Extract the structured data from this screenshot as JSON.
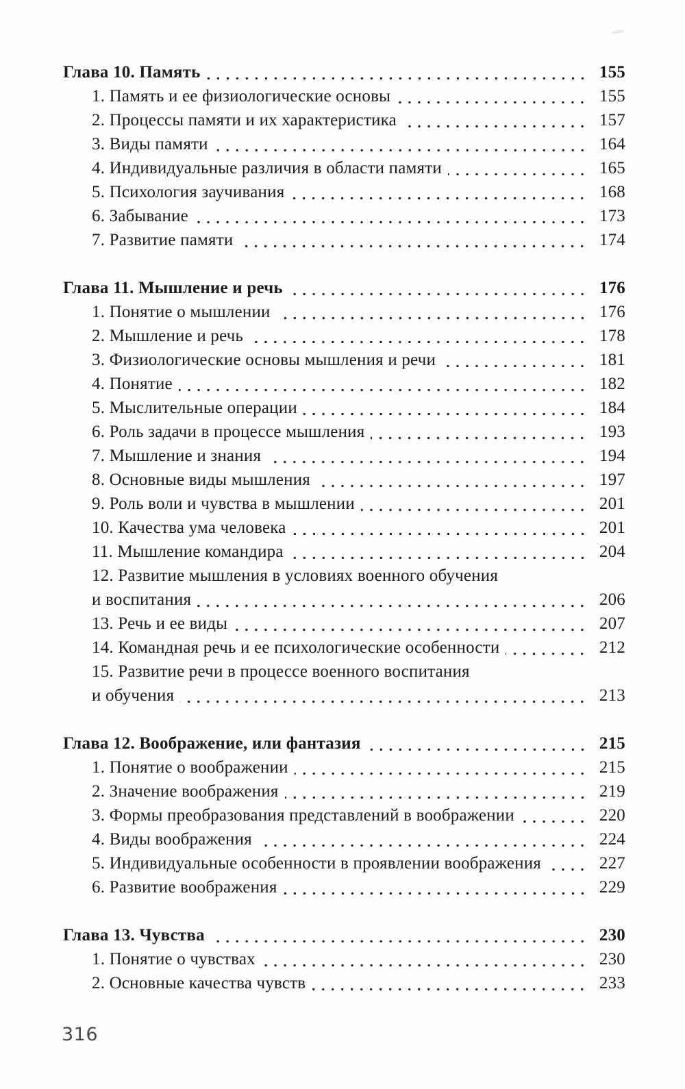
{
  "colors": {
    "ink": "#1d1c1a",
    "paper": "#fdfdfb",
    "folio": "#4a4a4a"
  },
  "footer": {
    "page_number": "316"
  },
  "toc": {
    "chapters": [
      {
        "title": "Глава 10. Память",
        "page": "155",
        "items": [
          {
            "text": "1. Память и ее физиологические основы",
            "page": "155"
          },
          {
            "text": "2. Процессы памяти и их характеристика",
            "page": "157"
          },
          {
            "text": "3. Виды памяти",
            "page": "164"
          },
          {
            "text": "4. Индивидуальные различия в области памяти",
            "page": "165"
          },
          {
            "text": "5. Психология заучивания",
            "page": "168"
          },
          {
            "text": "6. Забывание",
            "page": "173"
          },
          {
            "text": "7. Развитие памяти",
            "page": "174"
          }
        ]
      },
      {
        "title": "Глава 11. Мышление и речь",
        "page": "176",
        "items": [
          {
            "text": "1. Понятие о мышлении",
            "page": "176"
          },
          {
            "text": "2. Мышление и речь",
            "page": "178"
          },
          {
            "text": "3. Физиологические основы мышления и речи",
            "page": "181"
          },
          {
            "text": "4. Понятие",
            "page": "182"
          },
          {
            "text": "5. Мыслительные операции",
            "page": "184"
          },
          {
            "text": "6. Роль задачи в процессе мышления",
            "page": "193"
          },
          {
            "text": "7. Мышление и знания",
            "page": "194"
          },
          {
            "text": "8. Основные виды мышления",
            "page": "197"
          },
          {
            "text": "9. Роль воли и чувства в мышлении",
            "page": "201"
          },
          {
            "text": "10. Качества ума человека",
            "page": "201"
          },
          {
            "text": "11. Мышление командира",
            "page": "204"
          },
          {
            "text": "12. Развитие мышления в условиях военного обучения",
            "text2": "и воспитания",
            "page": "206"
          },
          {
            "text": "13. Речь и ее виды",
            "page": "207"
          },
          {
            "text": "14. Командная речь и ее психологические особенности",
            "page": "212"
          },
          {
            "text": "15. Развитие речи в процессе военного воспитания",
            "text2": "и обучения",
            "page": "213"
          }
        ]
      },
      {
        "title": "Глава 12. Воображение, или фантазия",
        "page": "215",
        "items": [
          {
            "text": "1. Понятие о воображении",
            "page": "215"
          },
          {
            "text": "2. Значение воображения",
            "page": "219"
          },
          {
            "text": "3. Формы преобразования представлений в воображении",
            "page": "220"
          },
          {
            "text": "4. Виды воображения",
            "page": "224"
          },
          {
            "text": "5. Индивидуальные особенности в проявлении воображения",
            "page": "227"
          },
          {
            "text": "6. Развитие воображения",
            "page": "229"
          }
        ]
      },
      {
        "title": "Глава 13. Чувства",
        "page": "230",
        "items": [
          {
            "text": "1. Понятие о чувствах",
            "page": "230"
          },
          {
            "text": "2. Основные качества чувств",
            "page": "233"
          }
        ]
      }
    ]
  }
}
